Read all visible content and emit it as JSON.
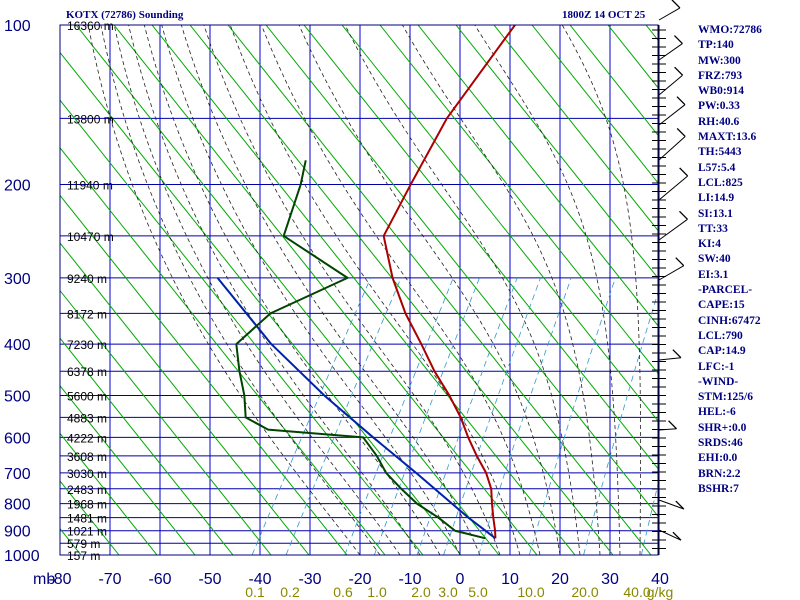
{
  "header": {
    "title": "KOTX (72786) Sounding",
    "datetime": "1800Z 14 OCT 25"
  },
  "indices": [
    "WMO:72786",
    "TP:140",
    "MW:300",
    "FRZ:793",
    "WB0:914",
    "PW:0.33",
    "RH:40.6",
    "MAXT:13.6",
    "TH:5443",
    "L57:5.4",
    "LCL:825",
    "LI:14.9",
    "SI:13.1",
    "TT:33",
    "KI:4",
    "SW:40",
    "EI:3.1",
    "-PARCEL-",
    "CAPE:15",
    "CINH:67472",
    "LCL:790",
    "CAP:14.9",
    "LFC:-1",
    "-WIND-",
    "STM:125/6",
    "HEL:-6",
    "SHR+:0.0",
    "SRDS:46",
    "EHI:0.0",
    "BRN:2.2",
    "BSHR:7"
  ],
  "colors": {
    "frame": "#000080",
    "isobar": "#0000aa",
    "isotherm": "#0000cc",
    "dry_adiabat": "#00aa00",
    "moist_adiabat": "#222222",
    "mixing_ratio": "#3399cc",
    "temperature": "#aa0000",
    "dewpoint": "#004400",
    "parcel": "#0022aa",
    "wind": "#000000",
    "label": "#000080",
    "mixing_label": "#888800"
  },
  "chart_data": {
    "type": "skew-t",
    "title": "KOTX (72786) Sounding",
    "x_axis": {
      "unit": "°C",
      "range": [
        -80,
        40
      ]
    },
    "y_axis": {
      "unit": "mb",
      "range": [
        1000,
        100
      ],
      "scale": "log"
    },
    "temp_tick_labels": [
      "mb",
      "-80",
      "-70",
      "-60",
      "-50",
      "-40",
      "-30",
      "-20",
      "-10",
      "0",
      "10",
      "20",
      "30",
      "40"
    ],
    "pressure_levels": [
      {
        "p": 100,
        "label": "100",
        "height": "16360 m"
      },
      {
        "p": 150,
        "label": "",
        "height": "13800 m"
      },
      {
        "p": 200,
        "label": "200",
        "height": "11940 m"
      },
      {
        "p": 250,
        "label": "",
        "height": "10470 m"
      },
      {
        "p": 300,
        "label": "300",
        "height": "9240 m"
      },
      {
        "p": 350,
        "label": "",
        "height": "8172 m"
      },
      {
        "p": 400,
        "label": "400",
        "height": "7230 m"
      },
      {
        "p": 450,
        "label": "",
        "height": "6378 m"
      },
      {
        "p": 500,
        "label": "500",
        "height": "5600 m"
      },
      {
        "p": 550,
        "label": "",
        "height": "4883 m"
      },
      {
        "p": 600,
        "label": "600",
        "height": "4222 m"
      },
      {
        "p": 650,
        "label": "",
        "height": "3608 m"
      },
      {
        "p": 700,
        "label": "700",
        "height": "3030 m"
      },
      {
        "p": 750,
        "label": "",
        "height": "2483 m"
      },
      {
        "p": 800,
        "label": "800",
        "height": "1968 m"
      },
      {
        "p": 850,
        "label": "",
        "height": "1481 m"
      },
      {
        "p": 900,
        "label": "900",
        "height": "1021 m"
      },
      {
        "p": 950,
        "label": "",
        "height": "579 m"
      },
      {
        "p": 1000,
        "label": "1000",
        "height": "157 m"
      }
    ],
    "mixing_ratio_labels": [
      "0.1",
      "0.2",
      "0.6",
      "1.0",
      "2.0",
      "3.0",
      "5.0",
      "10.0",
      "20.0",
      "40.0",
      "g/kg"
    ],
    "mixing_ratio_values": [
      0.1,
      0.2,
      0.6,
      1.0,
      2.0,
      3.0,
      5.0,
      10.0,
      20.0,
      40.0
    ],
    "temperature": [
      {
        "p": 930,
        "t": 5
      },
      {
        "p": 900,
        "t": 4
      },
      {
        "p": 850,
        "t": 2
      },
      {
        "p": 800,
        "t": 0
      },
      {
        "p": 750,
        "t": -2
      },
      {
        "p": 700,
        "t": -5
      },
      {
        "p": 650,
        "t": -9
      },
      {
        "p": 600,
        "t": -13
      },
      {
        "p": 550,
        "t": -17
      },
      {
        "p": 500,
        "t": -22
      },
      {
        "p": 450,
        "t": -28
      },
      {
        "p": 400,
        "t": -34
      },
      {
        "p": 350,
        "t": -41
      },
      {
        "p": 300,
        "t": -48
      },
      {
        "p": 250,
        "t": -55
      },
      {
        "p": 200,
        "t": -56
      },
      {
        "p": 150,
        "t": -57
      },
      {
        "p": 100,
        "t": -55
      }
    ],
    "dewpoint": [
      {
        "p": 930,
        "t": 3
      },
      {
        "p": 900,
        "t": -4
      },
      {
        "p": 850,
        "t": -9
      },
      {
        "p": 800,
        "t": -15
      },
      {
        "p": 750,
        "t": -20
      },
      {
        "p": 700,
        "t": -25
      },
      {
        "p": 650,
        "t": -29
      },
      {
        "p": 600,
        "t": -34
      },
      {
        "p": 580,
        "t": -54
      },
      {
        "p": 550,
        "t": -60
      },
      {
        "p": 500,
        "t": -63
      },
      {
        "p": 450,
        "t": -67
      },
      {
        "p": 400,
        "t": -71
      },
      {
        "p": 350,
        "t": -68
      },
      {
        "p": 300,
        "t": -57
      },
      {
        "p": 250,
        "t": -75
      },
      {
        "p": 200,
        "t": -78
      },
      {
        "p": 180,
        "t": -80
      }
    ],
    "parcel": [
      {
        "p": 930,
        "t": 5
      },
      {
        "p": 850,
        "t": -3
      },
      {
        "p": 800,
        "t": -8
      },
      {
        "p": 700,
        "t": -19
      },
      {
        "p": 600,
        "t": -32
      },
      {
        "p": 500,
        "t": -47
      },
      {
        "p": 400,
        "t": -64
      },
      {
        "p": 300,
        "t": -83
      }
    ]
  }
}
